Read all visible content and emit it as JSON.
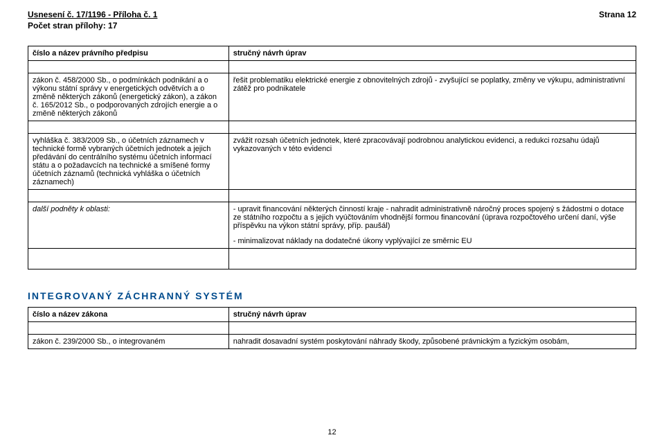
{
  "header": {
    "title_left": "Usnesení č. 17/1196 - Příloha č. 1",
    "title_right": "Strana 12",
    "subtitle": "Počet stran přílohy: 17"
  },
  "table1": {
    "head_left": "číslo a název právního předpisu",
    "head_right": "stručný návrh úprav",
    "rows": [
      {
        "left": "zákon č. 458/2000 Sb., o podmínkách podnikání a o výkonu státní správy v energetických odvětvích a o změně některých zákonů (energetický zákon), a zákon č. 165/2012 Sb., o podporovaných zdrojích energie a o změně některých zákonů",
        "right": "řešit problematiku elektrické energie z obnovitelných zdrojů - zvyšující se poplatky, změny ve výkupu, administrativní zátěž pro podnikatele"
      },
      {
        "left": "vyhláška č. 383/2009 Sb., o účetních záznamech v technické formě vybraných účetních jednotek a jejich předávání do centrálního systému účetních informací státu a o požadavcích na technické a smíšené formy účetních záznamů (technická vyhláška o účetních záznamech)",
        "right": "zvážit rozsah účetních jednotek, které zpracovávají podrobnou analytickou evidenci, a redukci rozsahu údajů vykazovaných v této evidenci"
      },
      {
        "left_italic": true,
        "left": "další podněty k oblasti:",
        "right_paras": [
          "- upravit financování některých činností kraje - nahradit administrativně náročný proces spojený s žádostmi o dotace ze státního rozpočtu a s jejich vyúčtováním vhodnější formou financování (úprava rozpočtového určení daní, výše příspěvku na výkon státní správy, příp. paušál)",
          "- minimalizovat náklady na dodatečné úkony vyplývající ze směrnic EU"
        ]
      }
    ]
  },
  "section": "INTEGROVANÝ ZÁCHRANNÝ SYSTÉM",
  "table2": {
    "head_left": "číslo a název zákona",
    "head_right": "stručný návrh úprav",
    "row": {
      "left": "zákon č. 239/2000 Sb., o integrovaném",
      "right": "nahradit dosavadní systém poskytování náhrady škody, způsobené právnickým a fyzickým osobám,"
    }
  },
  "page_number": "12"
}
